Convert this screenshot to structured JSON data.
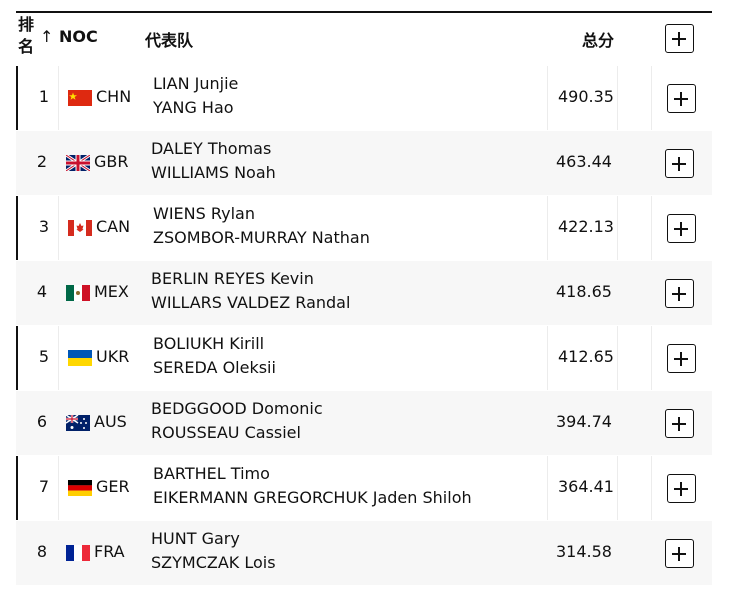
{
  "header": {
    "rank": "排名",
    "sort": "↑",
    "noc": "NOC",
    "team": "代表队",
    "total": "总分"
  },
  "rows": [
    {
      "rank": 1,
      "noc": "CHN",
      "athletes": [
        "LIAN Junjie",
        "YANG Hao"
      ],
      "total": 490.35
    },
    {
      "rank": 2,
      "noc": "GBR",
      "athletes": [
        "DALEY Thomas",
        "WILLIAMS Noah"
      ],
      "total": 463.44
    },
    {
      "rank": 3,
      "noc": "CAN",
      "athletes": [
        "WIENS Rylan",
        "ZSOMBOR-MURRAY Nathan"
      ],
      "total": 422.13
    },
    {
      "rank": 4,
      "noc": "MEX",
      "athletes": [
        "BERLIN REYES Kevin",
        "WILLARS VALDEZ Randal"
      ],
      "total": 418.65
    },
    {
      "rank": 5,
      "noc": "UKR",
      "athletes": [
        "BOLIUKH Kirill",
        "SEREDA Oleksii"
      ],
      "total": 412.65
    },
    {
      "rank": 6,
      "noc": "AUS",
      "athletes": [
        "BEDGGOOD Domonic",
        "ROUSSEAU Cassiel"
      ],
      "total": 394.74
    },
    {
      "rank": 7,
      "noc": "GER",
      "athletes": [
        "BARTHEL Timo",
        "EIKERMANN GREGORCHUK Jaden Shiloh"
      ],
      "total": 364.41
    },
    {
      "rank": 8,
      "noc": "FRA",
      "athletes": [
        "HUNT Gary",
        "SZYMCZAK Lois"
      ],
      "total": 314.58
    }
  ]
}
